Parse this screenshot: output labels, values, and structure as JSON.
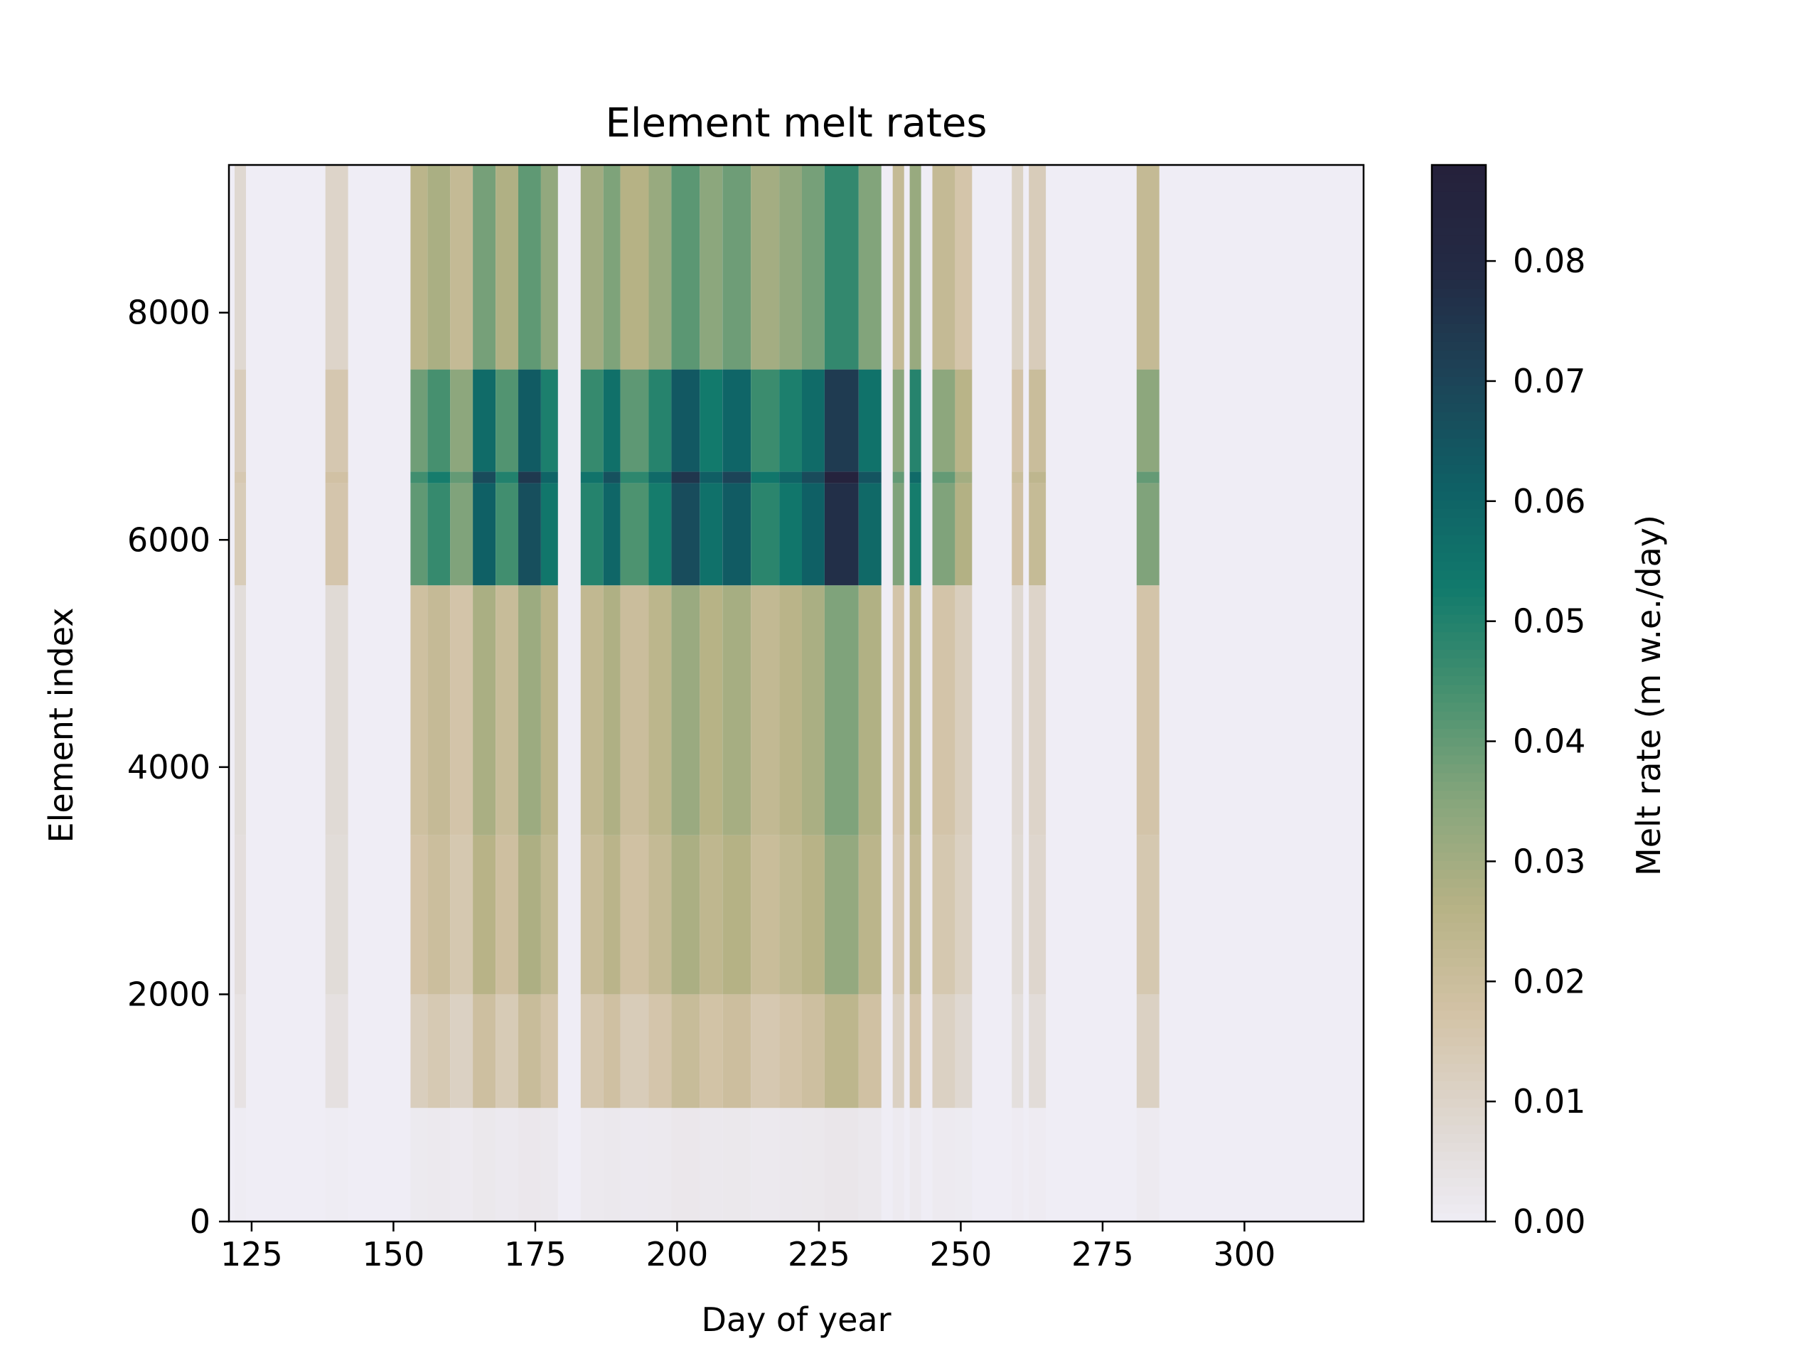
{
  "chart_data": {
    "type": "heatmap",
    "title": "Element melt rates",
    "xlabel": "Day of year",
    "ylabel": "Element index",
    "xlim": [
      121,
      321
    ],
    "ylim": [
      0,
      9300
    ],
    "x_ticks": [
      125,
      150,
      175,
      200,
      225,
      250,
      275,
      300
    ],
    "y_ticks": [
      0,
      2000,
      4000,
      6000,
      8000
    ],
    "grid": false,
    "colorbar": {
      "label": "Melt rate (m w.e./day)",
      "range": [
        0,
        0.088
      ],
      "ticks": [
        "0.00",
        "0.01",
        "0.02",
        "0.03",
        "0.04",
        "0.05",
        "0.06",
        "0.07",
        "0.08"
      ],
      "tick_values": [
        0,
        0.01,
        0.02,
        0.03,
        0.04,
        0.05,
        0.06,
        0.07,
        0.08
      ],
      "colormap_stops": [
        {
          "v": 0.0,
          "color": "#efedf5"
        },
        {
          "v": 0.08,
          "color": "#e1dbd7"
        },
        {
          "v": 0.2,
          "color": "#d2c2a5"
        },
        {
          "v": 0.3,
          "color": "#b6b285"
        },
        {
          "v": 0.4,
          "color": "#86a57c"
        },
        {
          "v": 0.5,
          "color": "#47916f"
        },
        {
          "v": 0.6,
          "color": "#117a6c"
        },
        {
          "v": 0.7,
          "color": "#0f5f65"
        },
        {
          "v": 0.8,
          "color": "#1d4357"
        },
        {
          "v": 0.9,
          "color": "#232a44"
        },
        {
          "v": 1.0,
          "color": "#25213b"
        }
      ]
    },
    "day_columns": [
      {
        "start": 122,
        "end": 124,
        "peak": 0.015
      },
      {
        "start": 138,
        "end": 142,
        "peak": 0.018
      },
      {
        "start": 153,
        "end": 156,
        "peak": 0.045
      },
      {
        "start": 156,
        "end": 160,
        "peak": 0.052
      },
      {
        "start": 160,
        "end": 164,
        "peak": 0.04
      },
      {
        "start": 164,
        "end": 168,
        "peak": 0.068
      },
      {
        "start": 168,
        "end": 172,
        "peak": 0.05
      },
      {
        "start": 172,
        "end": 176,
        "peak": 0.074
      },
      {
        "start": 176,
        "end": 179,
        "peak": 0.06
      },
      {
        "start": 183,
        "end": 187,
        "peak": 0.055
      },
      {
        "start": 187,
        "end": 190,
        "peak": 0.066
      },
      {
        "start": 190,
        "end": 195,
        "peak": 0.048
      },
      {
        "start": 195,
        "end": 199,
        "peak": 0.058
      },
      {
        "start": 199,
        "end": 204,
        "peak": 0.075
      },
      {
        "start": 204,
        "end": 208,
        "peak": 0.062
      },
      {
        "start": 208,
        "end": 213,
        "peak": 0.07
      },
      {
        "start": 213,
        "end": 218,
        "peak": 0.054
      },
      {
        "start": 218,
        "end": 222,
        "peak": 0.06
      },
      {
        "start": 222,
        "end": 226,
        "peak": 0.068
      },
      {
        "start": 226,
        "end": 232,
        "peak": 0.086
      },
      {
        "start": 232,
        "end": 236,
        "peak": 0.065
      },
      {
        "start": 238,
        "end": 240,
        "peak": 0.04
      },
      {
        "start": 241,
        "end": 243,
        "peak": 0.058
      },
      {
        "start": 245,
        "end": 249,
        "peak": 0.04
      },
      {
        "start": 249,
        "end": 252,
        "peak": 0.03
      },
      {
        "start": 259,
        "end": 261,
        "peak": 0.02
      },
      {
        "start": 262,
        "end": 265,
        "peak": 0.024
      },
      {
        "start": 281,
        "end": 285,
        "peak": 0.04
      }
    ],
    "element_bands": [
      {
        "from": 0,
        "to": 1000,
        "factor": 0.03
      },
      {
        "from": 1000,
        "to": 2000,
        "factor": 0.28
      },
      {
        "from": 2000,
        "to": 3400,
        "factor": 0.38
      },
      {
        "from": 3400,
        "to": 5600,
        "factor": 0.42
      },
      {
        "from": 5600,
        "to": 6500,
        "factor": 0.9
      },
      {
        "from": 6500,
        "to": 6600,
        "factor": 1.0
      },
      {
        "from": 6600,
        "to": 7500,
        "factor": 0.85
      },
      {
        "from": 7500,
        "to": 9300,
        "factor": 0.55
      }
    ]
  }
}
